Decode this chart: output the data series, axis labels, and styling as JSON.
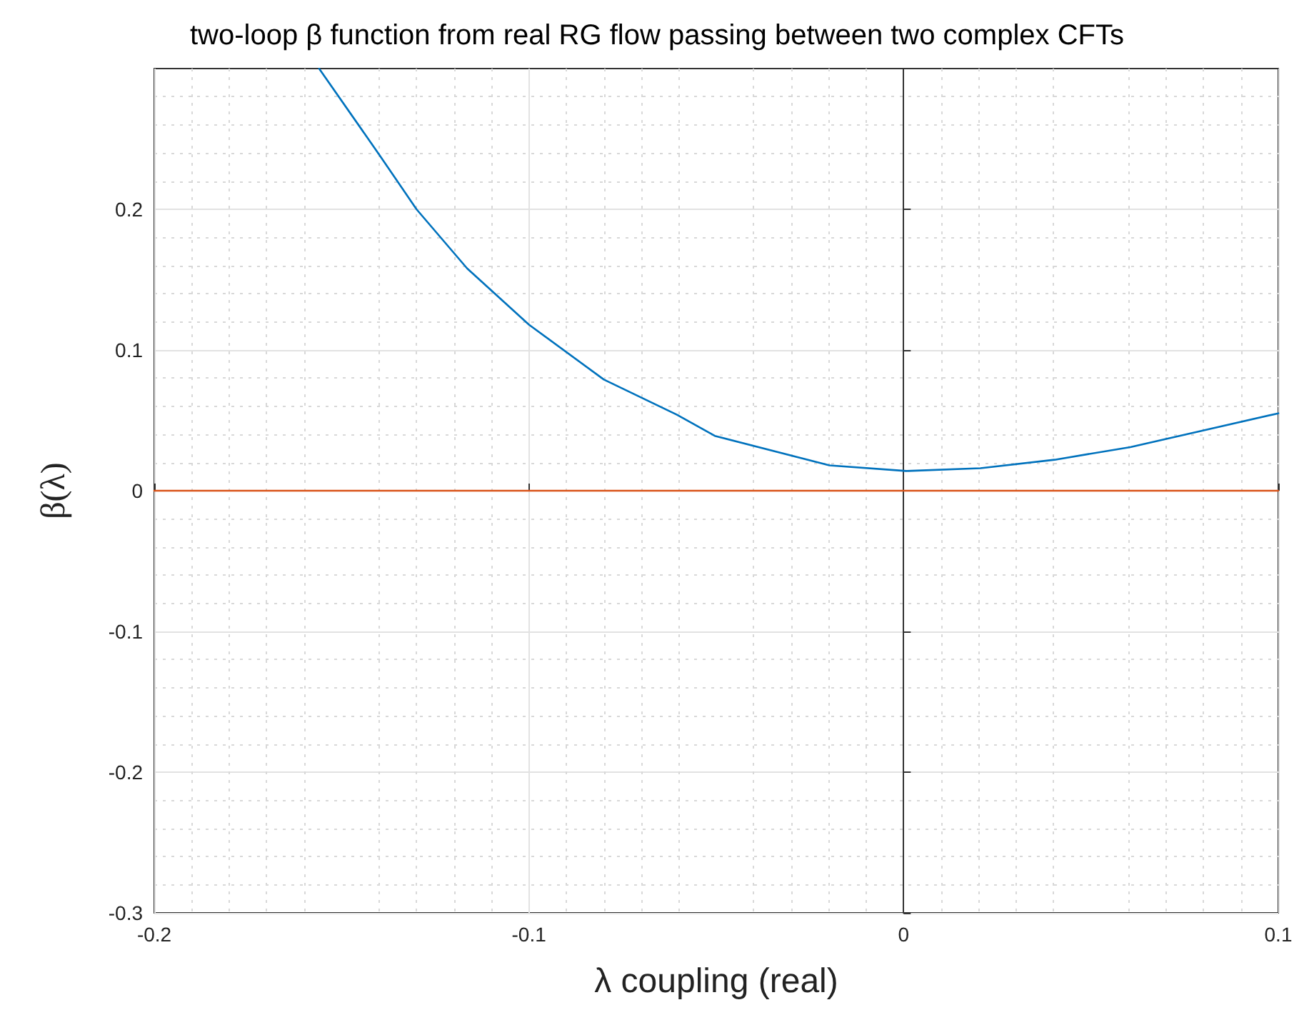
{
  "chart_data": {
    "type": "line",
    "title": "two-loop β function from real RG flow passing between two complex CFTs",
    "xlabel": "λ coupling (real)",
    "ylabel": "β(λ)",
    "series": [
      {
        "color": "#0072bd",
        "x": [
          -0.156,
          -0.14,
          -0.13,
          -0.1165,
          -0.1,
          -0.08,
          -0.0605,
          -0.0504,
          -0.0198,
          0.0007,
          0.0205,
          0.0403,
          0.0605,
          0.0803,
          0.1
        ],
        "values": [
          0.3,
          0.239,
          0.2,
          0.158,
          0.118,
          0.079,
          0.054,
          0.039,
          0.018,
          0.014,
          0.016,
          0.022,
          0.031,
          0.043,
          0.055
        ]
      },
      {
        "color": "#d95319",
        "x": [
          -0.2,
          0.1
        ],
        "values": [
          0,
          0
        ]
      }
    ],
    "xlim": [
      -0.2,
      0.1
    ],
    "xticks": [
      -0.2,
      -0.1,
      0,
      0.1
    ],
    "ylim": [
      -0.3,
      0.3
    ],
    "yticks": [
      -0.3,
      -0.2,
      -0.1,
      0,
      0.1,
      0.2
    ],
    "grid": true,
    "marker": "none",
    "line_style": "solid"
  }
}
